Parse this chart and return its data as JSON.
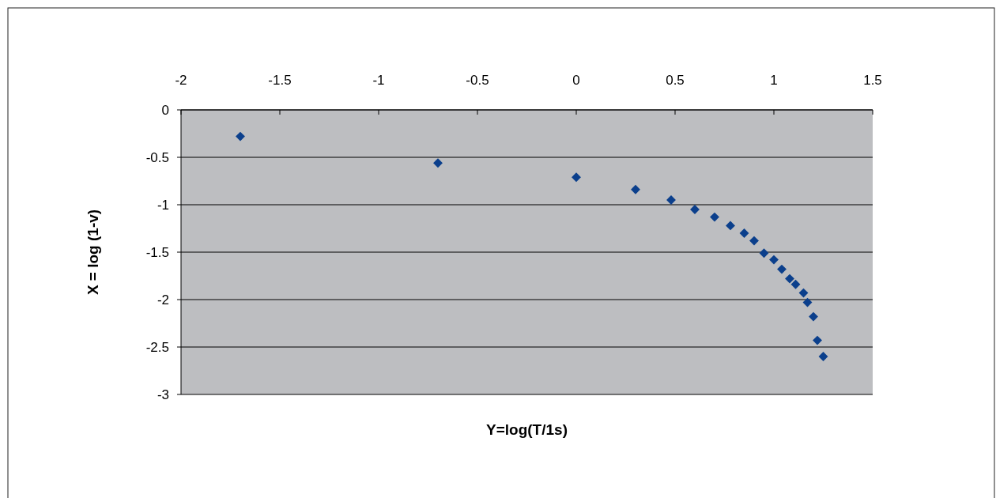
{
  "chart_data": {
    "type": "scatter",
    "xlabel": "Y=log(T/1s)",
    "ylabel": "X = log (1-v)",
    "x": [
      -1.7,
      -0.7,
      0,
      0.3,
      0.48,
      0.6,
      0.7,
      0.78,
      0.85,
      0.9,
      0.95,
      1.0,
      1.04,
      1.08,
      1.11,
      1.15,
      1.17,
      1.2,
      1.22,
      1.25
    ],
    "series": [
      {
        "color": "#0b3f8c",
        "values": [
          -0.28,
          -0.56,
          -0.71,
          -0.84,
          -0.95,
          -1.05,
          -1.13,
          -1.22,
          -1.3,
          -1.38,
          -1.51,
          -1.58,
          -1.68,
          -1.78,
          -1.84,
          -1.93,
          -2.03,
          -2.18,
          -2.43,
          -2.6
        ]
      }
    ],
    "xlim": [
      -2,
      1.5
    ],
    "xticks": [
      -2,
      -1.5,
      -1,
      -0.5,
      0,
      0.5,
      1,
      1.5
    ],
    "ylim": [
      -3,
      0
    ],
    "yticks": [
      -3,
      -2.5,
      -2,
      -1.5,
      -1,
      -0.5,
      0
    ],
    "grid": "y",
    "marker": "diamond"
  }
}
